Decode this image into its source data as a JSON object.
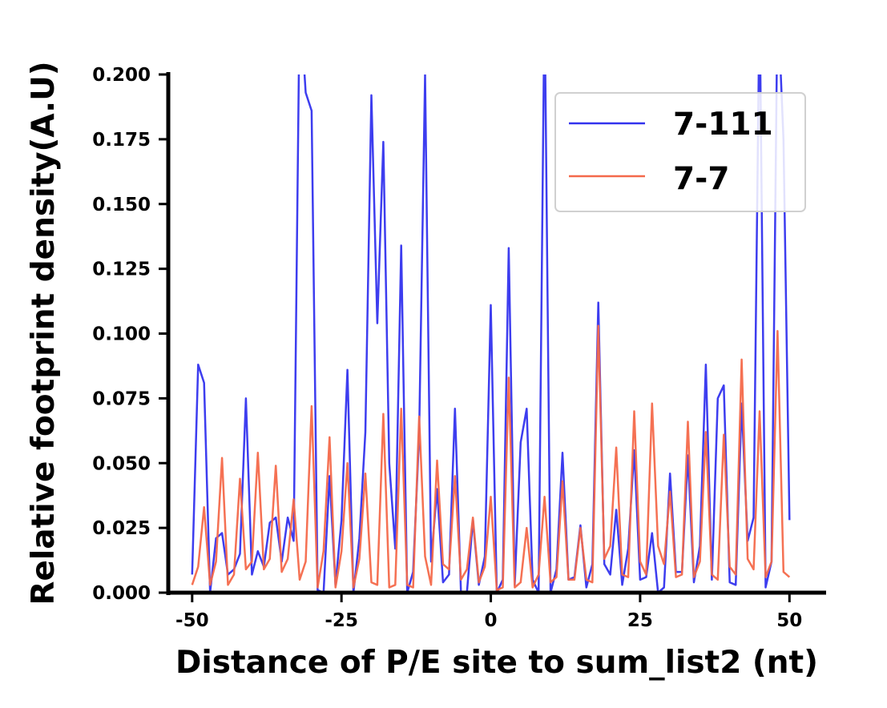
{
  "chart_data": {
    "type": "line",
    "xlabel": "Distance of P/E site to sum_list2 (nt)",
    "ylabel": "Relative footprint density(A.U)",
    "xlim": [
      -54,
      56
    ],
    "ylim": [
      0,
      0.2
    ],
    "xticks": [
      -50,
      -25,
      0,
      25,
      50
    ],
    "xtick_labels": [
      "-50",
      "-25",
      "0",
      "25",
      "50"
    ],
    "yticks": [
      0,
      0.025,
      0.05,
      0.075,
      0.1,
      0.125,
      0.15,
      0.175,
      0.2
    ],
    "ytick_labels": [
      "0.000",
      "0.025",
      "0.050",
      "0.075",
      "0.100",
      "0.125",
      "0.150",
      "0.175",
      "0.200"
    ],
    "grid": false,
    "legend_position": "top-right",
    "series": [
      {
        "name": "7-111",
        "color": "#3333ee",
        "x": [
          -50,
          -49,
          -48,
          -47,
          -46,
          -45,
          -44,
          -43,
          -42,
          -41,
          -40,
          -39,
          -38,
          -37,
          -36,
          -35,
          -34,
          -33,
          -32,
          -31,
          -30,
          -29,
          -28,
          -27,
          -26,
          -25,
          -24,
          -23,
          -22,
          -21,
          -20,
          -19,
          -18,
          -17,
          -16,
          -15,
          -14,
          -13,
          -12,
          -11,
          -10,
          -9,
          -8,
          -7,
          -6,
          -5,
          -4,
          -3,
          -2,
          -1,
          0,
          1,
          2,
          3,
          4,
          5,
          6,
          7,
          8,
          9,
          10,
          11,
          12,
          13,
          14,
          15,
          16,
          17,
          18,
          19,
          20,
          21,
          22,
          23,
          24,
          25,
          26,
          27,
          28,
          29,
          30,
          31,
          32,
          33,
          34,
          35,
          36,
          37,
          38,
          39,
          40,
          41,
          42,
          43,
          44,
          45,
          46,
          47,
          48,
          49,
          50
        ],
        "values": [
          0.007,
          0.088,
          0.081,
          0.0,
          0.021,
          0.023,
          0.007,
          0.009,
          0.015,
          0.075,
          0.007,
          0.016,
          0.01,
          0.027,
          0.029,
          0.012,
          0.029,
          0.02,
          0.23,
          0.193,
          0.186,
          0.001,
          0.0,
          0.045,
          0.003,
          0.028,
          0.086,
          0.0,
          0.021,
          0.062,
          0.192,
          0.104,
          0.174,
          0.05,
          0.017,
          0.134,
          0.0,
          0.008,
          0.061,
          0.2,
          0.012,
          0.04,
          0.004,
          0.007,
          0.071,
          0.0,
          0.0,
          0.028,
          0.003,
          0.014,
          0.111,
          0.0,
          0.005,
          0.133,
          0.003,
          0.058,
          0.071,
          0.005,
          0.0,
          0.23,
          0.0,
          0.009,
          0.054,
          0.005,
          0.006,
          0.026,
          0.002,
          0.011,
          0.112,
          0.011,
          0.007,
          0.032,
          0.003,
          0.017,
          0.055,
          0.005,
          0.006,
          0.023,
          0.0,
          0.002,
          0.046,
          0.008,
          0.008,
          0.053,
          0.004,
          0.018,
          0.088,
          0.005,
          0.075,
          0.08,
          0.004,
          0.003,
          0.073,
          0.02,
          0.029,
          0.23,
          0.002,
          0.012,
          0.23,
          0.175,
          0.028
        ]
      },
      {
        "name": "7-7",
        "color": "#f4694a",
        "x": [
          -50,
          -49,
          -48,
          -47,
          -46,
          -45,
          -44,
          -43,
          -42,
          -41,
          -40,
          -39,
          -38,
          -37,
          -36,
          -35,
          -34,
          -33,
          -32,
          -31,
          -30,
          -29,
          -28,
          -27,
          -26,
          -25,
          -24,
          -23,
          -22,
          -21,
          -20,
          -19,
          -18,
          -17,
          -16,
          -15,
          -14,
          -13,
          -12,
          -11,
          -10,
          -9,
          -8,
          -7,
          -6,
          -5,
          -4,
          -3,
          -2,
          -1,
          0,
          1,
          2,
          3,
          4,
          5,
          6,
          7,
          8,
          9,
          10,
          11,
          12,
          13,
          14,
          15,
          16,
          17,
          18,
          19,
          20,
          21,
          22,
          23,
          24,
          25,
          26,
          27,
          28,
          29,
          30,
          31,
          32,
          33,
          34,
          35,
          36,
          37,
          38,
          39,
          40,
          41,
          42,
          43,
          44,
          45,
          46,
          47,
          48,
          49,
          50
        ],
        "values": [
          0.003,
          0.01,
          0.033,
          0.003,
          0.012,
          0.052,
          0.003,
          0.007,
          0.044,
          0.009,
          0.012,
          0.054,
          0.009,
          0.013,
          0.049,
          0.008,
          0.013,
          0.036,
          0.005,
          0.012,
          0.072,
          0.002,
          0.016,
          0.06,
          0.002,
          0.016,
          0.05,
          0.002,
          0.013,
          0.046,
          0.004,
          0.003,
          0.069,
          0.002,
          0.003,
          0.071,
          0.003,
          0.002,
          0.068,
          0.014,
          0.003,
          0.051,
          0.011,
          0.009,
          0.045,
          0.005,
          0.009,
          0.029,
          0.004,
          0.01,
          0.037,
          0.001,
          0.002,
          0.083,
          0.002,
          0.004,
          0.025,
          0.002,
          0.007,
          0.037,
          0.004,
          0.006,
          0.043,
          0.005,
          0.005,
          0.025,
          0.005,
          0.004,
          0.103,
          0.013,
          0.018,
          0.056,
          0.007,
          0.006,
          0.07,
          0.012,
          0.007,
          0.073,
          0.018,
          0.011,
          0.039,
          0.006,
          0.007,
          0.066,
          0.006,
          0.012,
          0.062,
          0.007,
          0.005,
          0.061,
          0.01,
          0.007,
          0.09,
          0.013,
          0.009,
          0.07,
          0.006,
          0.012,
          0.101,
          0.008,
          0.006
        ]
      }
    ]
  }
}
